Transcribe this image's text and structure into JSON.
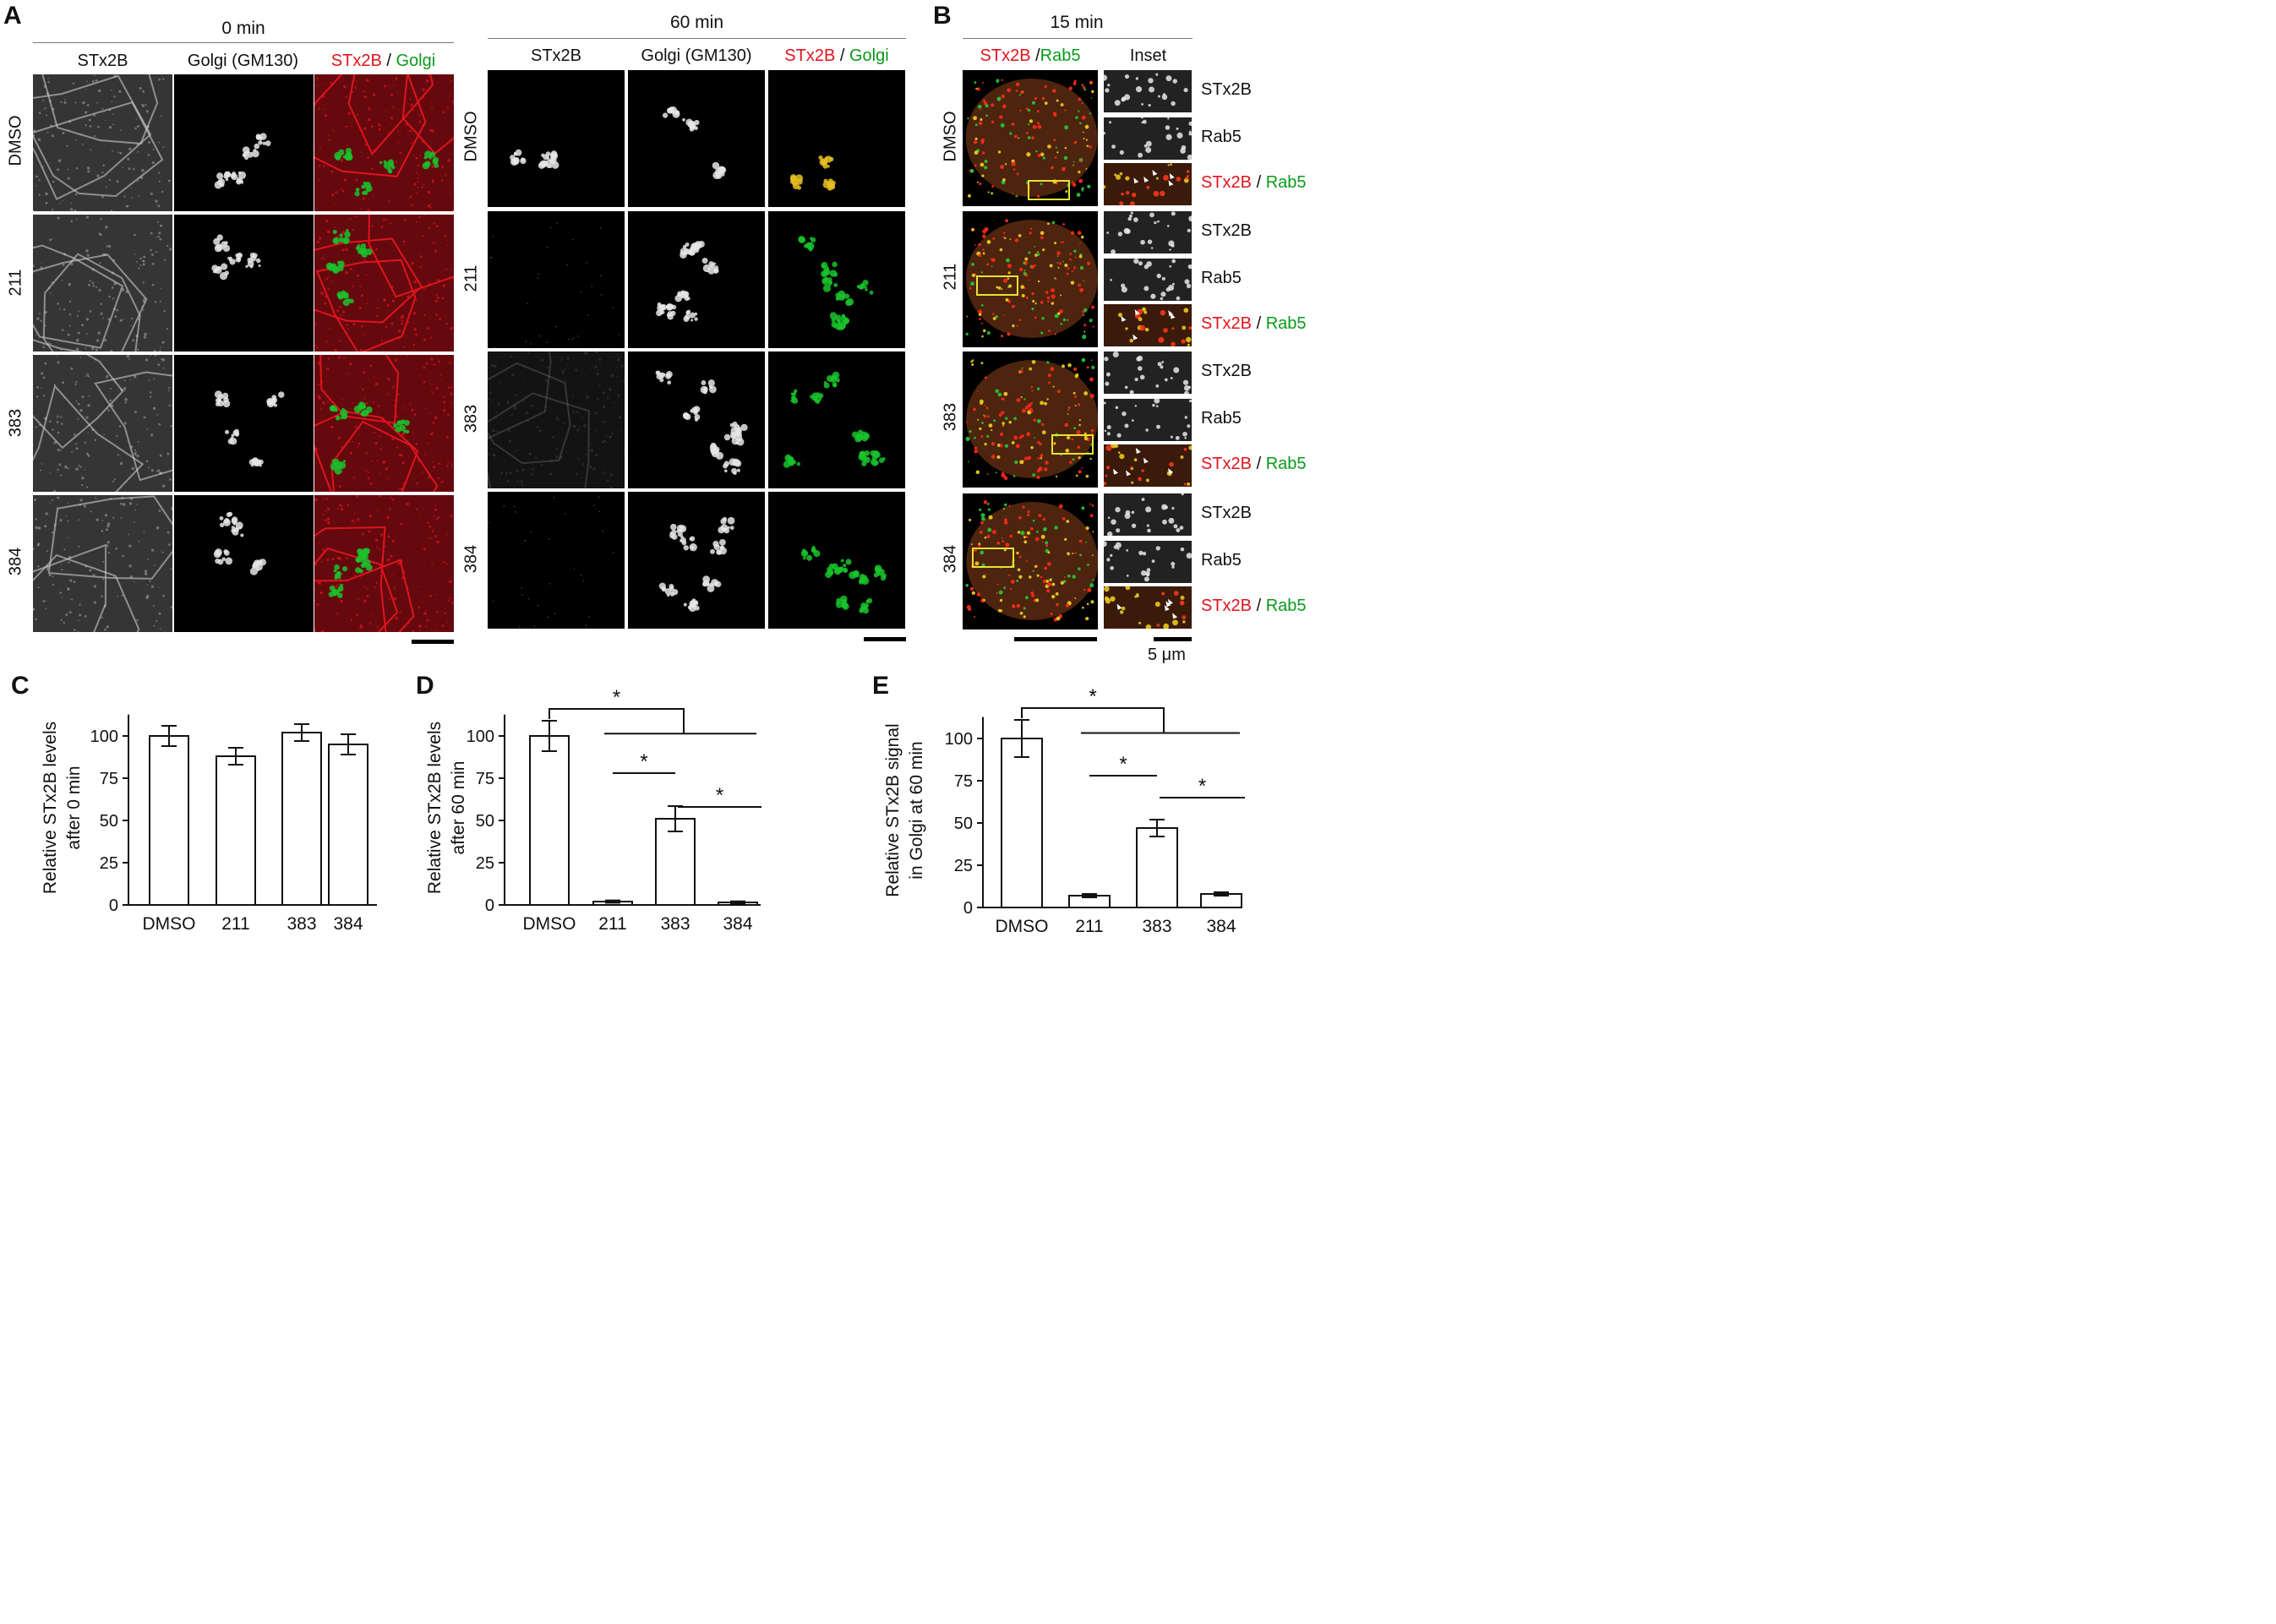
{
  "panels": {
    "A": {
      "label": "A",
      "time_left": "0 min",
      "time_right": "60 min",
      "columns": [
        "STx2B",
        "Golgi (GM130)",
        "STx2B / Golgi"
      ],
      "merge_red": "STx2B",
      "merge_sep": " / ",
      "merge_green": "Golgi",
      "rows": [
        "DMSO",
        "211",
        "383",
        "384"
      ]
    },
    "B": {
      "label": "B",
      "time": "15 min",
      "col_merge_red": "STx2B",
      "col_merge_sep": " /",
      "col_merge_green": "Rab5",
      "col_inset": "Inset",
      "rows": [
        "DMSO",
        "211",
        "383",
        "384"
      ],
      "inset_labels": [
        "STx2B",
        "Rab5"
      ],
      "inset_merge_red": "STx2B",
      "inset_merge_sep": " / ",
      "inset_merge_green": "Rab5",
      "scale_label": "5 μm"
    },
    "C": {
      "label": "C"
    },
    "D": {
      "label": "D"
    },
    "E": {
      "label": "E"
    }
  },
  "colors": {
    "stx2b": "#e0141e",
    "golgi": "#0a9a1c",
    "box": "#e8e233",
    "bar_fill": "#ffffff",
    "axis": "#111111"
  },
  "chart_data": [
    {
      "id": "C",
      "type": "bar",
      "categories": [
        "DMSO",
        "211",
        "383",
        "384"
      ],
      "values": [
        100,
        88,
        102,
        95
      ],
      "errors": [
        6,
        5,
        5,
        6
      ],
      "ylabel_lines": [
        "Relative STx2B levels",
        "after 0 min"
      ],
      "ylim": [
        0,
        115
      ],
      "yticks": [
        0,
        25,
        50,
        75,
        100
      ],
      "significance": []
    },
    {
      "id": "D",
      "type": "bar",
      "categories": [
        "DMSO",
        "211",
        "383",
        "384"
      ],
      "values": [
        100,
        2,
        51,
        1.5
      ],
      "errors": [
        9,
        0.7,
        7.5,
        0.6
      ],
      "ylabel_lines": [
        "Relative STx2B levels",
        "after 60 min"
      ],
      "ylim": [
        0,
        115
      ],
      "yticks": [
        0,
        25,
        50,
        75,
        100
      ],
      "significance": [
        {
          "type": "bracket",
          "from": 0,
          "to_group": [
            1,
            3
          ],
          "label": "*"
        },
        {
          "type": "line",
          "from": 1,
          "to": 2,
          "label": "*"
        },
        {
          "type": "line",
          "from": 2,
          "to": 3,
          "label": "*"
        }
      ]
    },
    {
      "id": "E",
      "type": "bar",
      "categories": [
        "DMSO",
        "211",
        "383",
        "384"
      ],
      "values": [
        100,
        7,
        47,
        8
      ],
      "errors": [
        11,
        1,
        5,
        1
      ],
      "ylabel_lines": [
        "Relative STx2B signal",
        "in Golgi at 60 min"
      ],
      "ylim": [
        0,
        115
      ],
      "yticks": [
        0,
        25,
        50,
        75,
        100
      ],
      "significance": [
        {
          "type": "bracket",
          "from": 0,
          "to_group": [
            1,
            3
          ],
          "label": "*"
        },
        {
          "type": "line",
          "from": 1,
          "to": 2,
          "label": "*"
        },
        {
          "type": "line",
          "from": 2,
          "to": 3,
          "label": "*"
        }
      ]
    }
  ]
}
